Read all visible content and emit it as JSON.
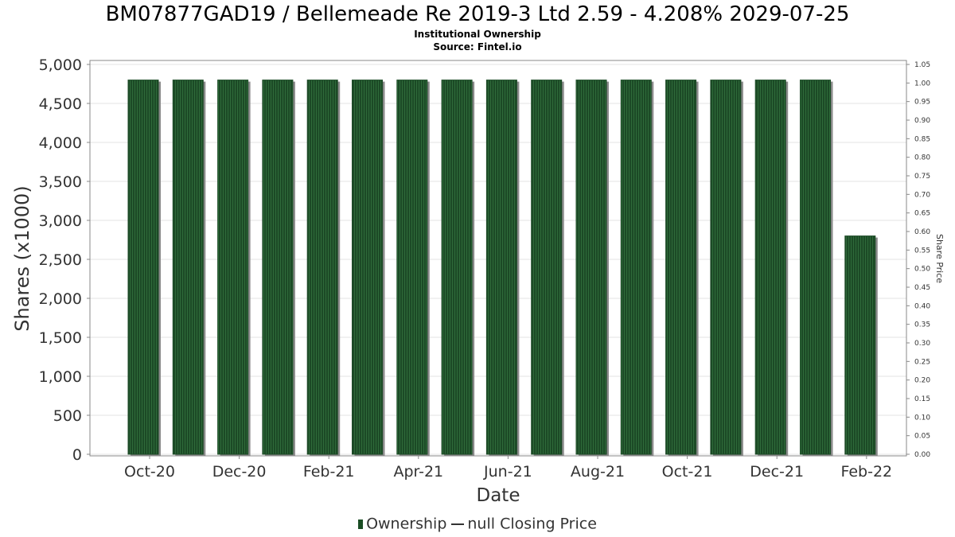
{
  "header": {
    "title": "BM07877GAD19 / Bellemeade Re 2019-3 Ltd 2.59 - 4.208% 2029-07-25",
    "subtitle": "Institutional Ownership",
    "source": "Source: Fintel.io"
  },
  "legend": {
    "ownership": "Ownership",
    "price": "null Closing Price"
  },
  "colors": {
    "bar": "#1c4a26",
    "bar_stripe": "#2f6b3a",
    "bar_shadow": "#8a8a8a",
    "grid": "#e3e3e3",
    "axis": "#888888"
  },
  "chart_data": {
    "type": "bar",
    "title": "BM07877GAD19 / Bellemeade Re 2019-3 Ltd 2.59 - 4.208% 2029-07-25",
    "xlabel": "Date",
    "ylabel": "Shares (x1000)",
    "y2label": "Share Price",
    "ylim": [
      0,
      5000
    ],
    "y2lim": [
      0,
      1.05
    ],
    "yticks": [
      "0",
      "500",
      "1,000",
      "1,500",
      "2,000",
      "2,500",
      "3,000",
      "3,500",
      "4,000",
      "4,500",
      "5,000"
    ],
    "y2ticks": [
      "0.00",
      "0.05",
      "0.10",
      "0.15",
      "0.20",
      "0.25",
      "0.30",
      "0.35",
      "0.40",
      "0.45",
      "0.50",
      "0.55",
      "0.60",
      "0.65",
      "0.70",
      "0.75",
      "0.80",
      "0.85",
      "0.90",
      "0.95",
      "1.00",
      "1.05"
    ],
    "xticks": [
      "Oct-20",
      "Dec-20",
      "Feb-21",
      "Apr-21",
      "Jun-21",
      "Aug-21",
      "Oct-21",
      "Dec-21",
      "Feb-22"
    ],
    "grid": true,
    "legend_position": "bottom",
    "series": [
      {
        "name": "Ownership",
        "values": [
          4800,
          4800,
          4800,
          4800,
          4800,
          4800,
          4800,
          4800,
          4800,
          4800,
          4800,
          4800,
          4800,
          4800,
          4800,
          4800,
          2800
        ]
      }
    ]
  }
}
